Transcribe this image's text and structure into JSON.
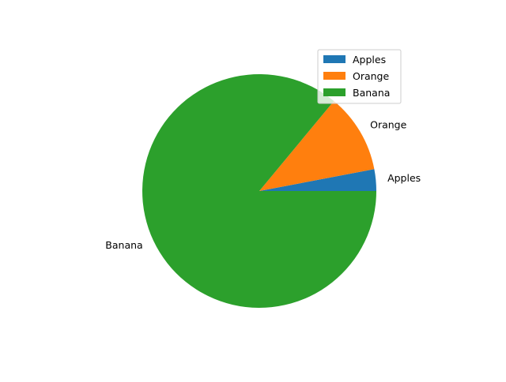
{
  "chart_data": {
    "type": "pie",
    "categories": [
      "Apples",
      "Orange",
      "Banana"
    ],
    "values": [
      3,
      11,
      86
    ],
    "colors": [
      "#1f77b4",
      "#ff7f0e",
      "#2ca02c"
    ],
    "legend": {
      "placement": "upper-right",
      "entries": [
        "Apples",
        "Orange",
        "Banana"
      ]
    },
    "start_angle_deg": 0,
    "direction": "counterclockwise"
  }
}
